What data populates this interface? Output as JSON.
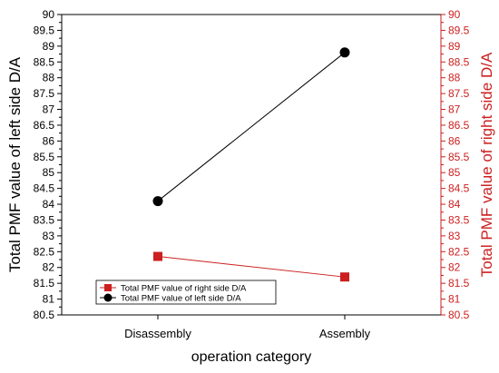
{
  "chart_data": {
    "type": "line",
    "categories": [
      "Disassembly",
      "Assembly"
    ],
    "xlabel": "operation category",
    "ylabel_left": "Total PMF value of left side D/A",
    "ylabel_right": "Total PMF value of right side D/A",
    "ylim_left": [
      80.5,
      90
    ],
    "ylim_right": [
      80.5,
      90
    ],
    "ytick_step": 0.5,
    "yticks": [
      "80.5",
      "81",
      "81.5",
      "82",
      "82.5",
      "83",
      "83.5",
      "84",
      "84.5",
      "85",
      "85.5",
      "86",
      "86.5",
      "87",
      "87.5",
      "88",
      "88.5",
      "89",
      "89.5",
      "90"
    ],
    "series": [
      {
        "name": "Total PMF value of right side D/A",
        "axis": "right",
        "marker": "square",
        "color": "#cc1f1f",
        "values": [
          82.35,
          81.7
        ]
      },
      {
        "name": "Total PMF value of left side D/A",
        "axis": "left",
        "marker": "circle",
        "color": "#000000",
        "values": [
          84.1,
          88.8
        ]
      }
    ],
    "legend_position": "bottom-left",
    "grid": false,
    "left_axis_color": "#000000",
    "right_axis_color": "#cc1f1f"
  }
}
